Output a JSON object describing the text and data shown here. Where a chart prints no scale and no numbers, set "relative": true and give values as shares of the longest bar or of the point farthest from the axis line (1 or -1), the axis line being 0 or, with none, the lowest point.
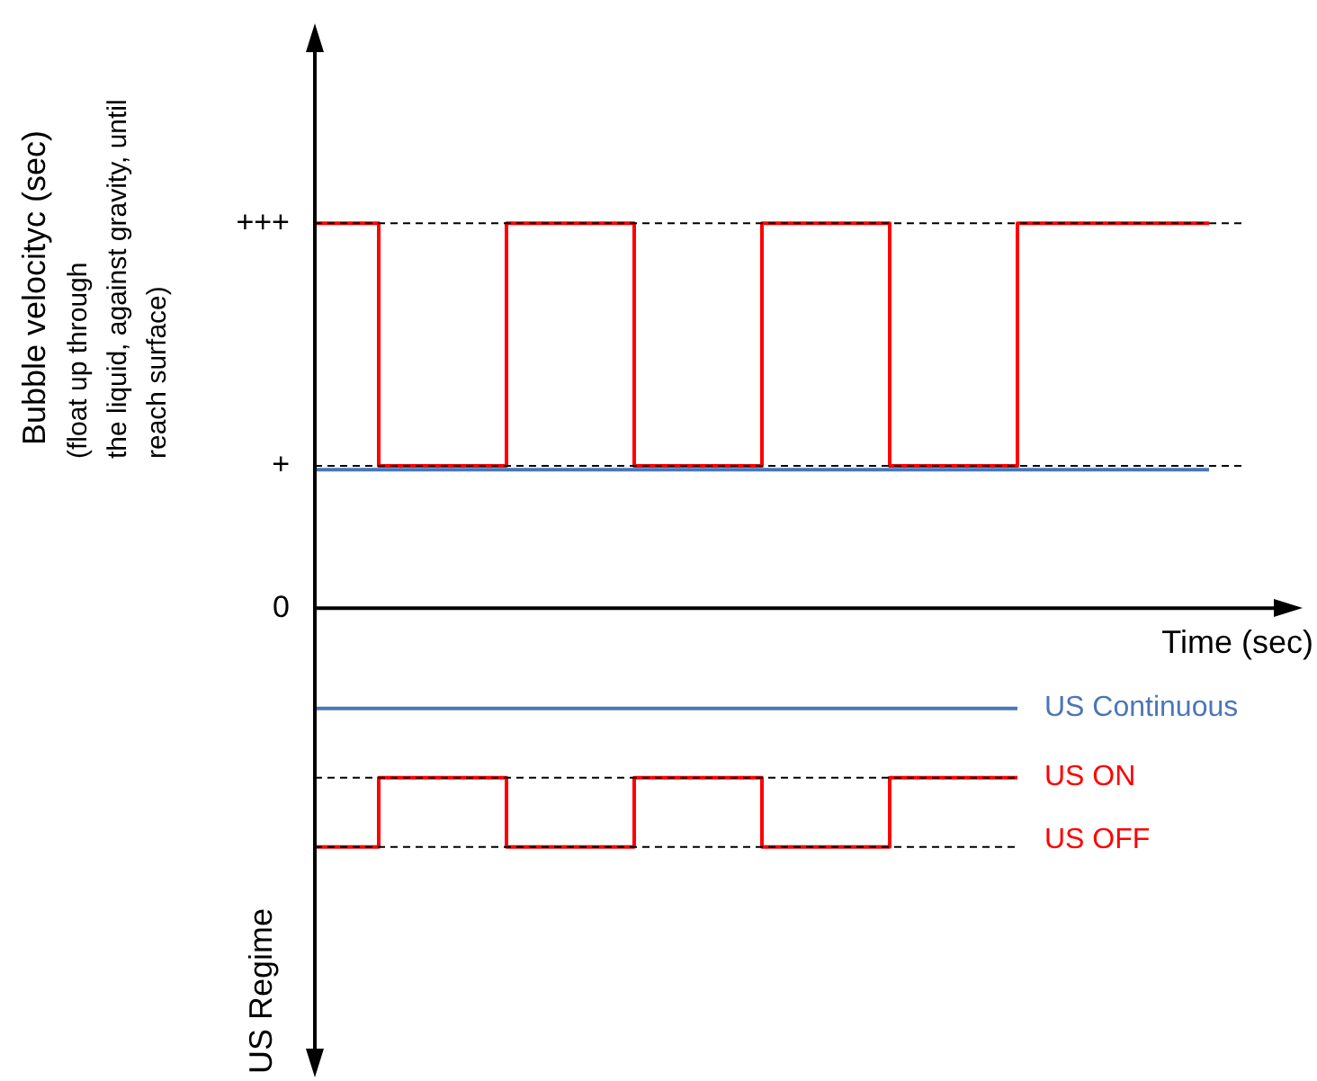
{
  "chart_data": {
    "type": "step",
    "relative": true,
    "xlabel": "Time (sec)",
    "categories": [
      null,
      null,
      null,
      null,
      null,
      null,
      null,
      null,
      null,
      null,
      null,
      null,
      null,
      null,
      null
    ],
    "series": [
      {
        "color": "#ff0000",
        "values": [
          1,
          1,
          0.37,
          0.37,
          1,
          1,
          0.37,
          0.37,
          1,
          1,
          0.37,
          0.37,
          1,
          1,
          1
        ]
      },
      {
        "color": "#4a76b8",
        "values": [
          0.36,
          0.36,
          0.36,
          0.36,
          0.36,
          0.36,
          0.36,
          0.36,
          0.36,
          0.36,
          0.36,
          0.36,
          0.36,
          0.36,
          0.36
        ]
      },
      {
        "name": "US Continuous",
        "color": "#4a76b8",
        "values": [
          -0.26,
          -0.26,
          -0.26,
          -0.26,
          -0.26,
          -0.26,
          -0.26,
          -0.26,
          -0.26,
          -0.26,
          -0.26,
          -0.26,
          null,
          null,
          null
        ]
      },
      {
        "color": "#ff0000",
        "values": [
          -0.62,
          -0.62,
          -0.44,
          -0.44,
          -0.62,
          -0.62,
          -0.44,
          -0.44,
          -0.62,
          -0.62,
          -0.44,
          -0.44,
          null,
          null,
          null
        ]
      }
    ],
    "ref_lines": [
      {
        "axis": "y",
        "value": 1,
        "line_style": "dashed"
      },
      {
        "axis": "y",
        "value": 0.37,
        "line_style": "dashed"
      },
      {
        "axis": "y",
        "value": -0.44,
        "label": "US ON",
        "line_style": "dashed"
      },
      {
        "axis": "y",
        "value": -0.62,
        "label": "US OFF",
        "line_style": "dashed"
      }
    ],
    "annotations": [
      "Bubble velocityc (sec)",
      "(float up through\nthe liquid, against gravity, until\nreach surface)",
      "US Regime",
      "+++",
      "+",
      "0"
    ],
    "legend": false
  }
}
